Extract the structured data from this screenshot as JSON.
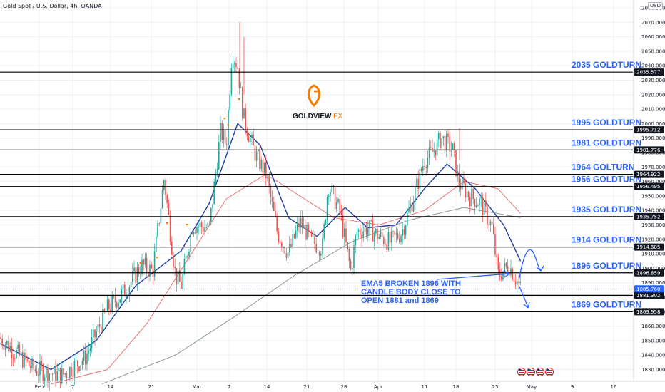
{
  "header": {
    "symbol": "Gold Spot / U.S. Dollar, 4h, OANDA",
    "currency": "USD"
  },
  "brand": {
    "name_bold": "GOLDVIEW",
    "name_light": "FX",
    "logo": "location-pin-g-logo"
  },
  "colors": {
    "up": "#26a69a",
    "down": "#ef5350",
    "ema_blue": "#1e3fa8",
    "ema_red": "#e57373",
    "ema_grey": "#8a9a8f",
    "level": "#000000",
    "label": "#2962ff",
    "brand_orange": "#f57c00"
  },
  "chart_data": {
    "type": "candlestick",
    "y_range": [
      1820,
      2080
    ],
    "y_ticks": [
      "2080.000",
      "2070.000",
      "2060.000",
      "2050.000",
      "2040.000",
      "2030.000",
      "2020.000",
      "2010.000",
      "2000.000",
      "1990.000",
      "1980.000",
      "1970.000",
      "1960.000",
      "1950.000",
      "1940.000",
      "1930.000",
      "1920.000",
      "1910.000",
      "1900.000",
      "1890.000",
      "1880.000",
      "1870.000",
      "1860.000",
      "1850.000",
      "1840.000",
      "1830.000"
    ],
    "x_labels": [
      "Feb",
      "7",
      "14",
      "21",
      "Mar",
      "7",
      "14",
      "21",
      "28",
      "Apr",
      "11",
      "18",
      "25",
      "May",
      "9",
      "16"
    ],
    "levels": [
      {
        "value": 2035.577,
        "price": "2035.577",
        "label": "2035 GOLDTURN"
      },
      {
        "value": 1995.712,
        "price": "1995.712",
        "label": "1995 GOLDTURN"
      },
      {
        "value": 1981.776,
        "price": "1981.776",
        "label": "1981 GOLDTURN"
      },
      {
        "value": 1964.922,
        "price": "1964.922",
        "label": "1964 GOLTURN"
      },
      {
        "value": 1956.495,
        "price": "1956.495",
        "label": "1956 GOLDTURN"
      },
      {
        "value": 1935.752,
        "price": "1935.752",
        "label": "1935 GOLDTURN"
      },
      {
        "value": 1914.685,
        "price": "1914.685",
        "label": "1914 GOLDTURN"
      },
      {
        "value": 1896.859,
        "price": "1896.859",
        "label": "1896 GOLDTURN"
      },
      {
        "value": 1881.302,
        "price": "1881.302",
        "label": ""
      },
      {
        "value": 1869.958,
        "price": "1869.958",
        "label": "1869 GOLDTURN"
      }
    ],
    "current_price": {
      "value": 1885.76,
      "price": "1885.760"
    },
    "annotation": [
      "EMA5 BROKEN 1896 WITH",
      "CANDLE BODY CLOSE TO",
      "OPEN 1881 and 1869"
    ],
    "price_path": [
      {
        "date": "2023-01-27",
        "close": 1852
      },
      {
        "date": "2023-02-02",
        "close": 1830
      },
      {
        "date": "2023-02-07",
        "close": 1826
      },
      {
        "date": "2023-02-11",
        "close": 1838
      },
      {
        "date": "2023-02-15",
        "close": 1872
      },
      {
        "date": "2023-02-18",
        "close": 1884
      },
      {
        "date": "2023-02-21",
        "close": 1902
      },
      {
        "date": "2023-02-23",
        "close": 1898
      },
      {
        "date": "2023-02-25",
        "close": 1962
      },
      {
        "date": "2023-02-27",
        "close": 1895
      },
      {
        "date": "2023-02-28",
        "close": 1888
      },
      {
        "date": "2023-03-02",
        "close": 1930
      },
      {
        "date": "2023-03-05",
        "close": 1928
      },
      {
        "date": "2023-03-07",
        "close": 1995
      },
      {
        "date": "2023-03-08",
        "close": 1985
      },
      {
        "date": "2023-03-09",
        "close": 2050
      },
      {
        "date": "2023-03-10",
        "close": 2040
      },
      {
        "date": "2023-03-11",
        "close": 2005
      },
      {
        "date": "2023-03-13",
        "close": 1980
      },
      {
        "date": "2023-03-15",
        "close": 1965
      },
      {
        "date": "2023-03-17",
        "close": 1925
      },
      {
        "date": "2023-03-19",
        "close": 1910
      },
      {
        "date": "2023-03-21",
        "close": 1932
      },
      {
        "date": "2023-03-23",
        "close": 1918
      },
      {
        "date": "2023-03-25",
        "close": 1915
      },
      {
        "date": "2023-03-26",
        "close": 1958
      },
      {
        "date": "2023-03-28",
        "close": 1940
      },
      {
        "date": "2023-03-30",
        "close": 1898
      },
      {
        "date": "2023-03-31",
        "close": 1925
      },
      {
        "date": "2023-04-02",
        "close": 1928
      },
      {
        "date": "2023-04-04",
        "close": 1922
      },
      {
        "date": "2023-04-06",
        "close": 1918
      },
      {
        "date": "2023-04-08",
        "close": 1925
      },
      {
        "date": "2023-04-10",
        "close": 1948
      },
      {
        "date": "2023-04-12",
        "close": 1975
      },
      {
        "date": "2023-04-13",
        "close": 1978
      },
      {
        "date": "2023-04-15",
        "close": 1990
      },
      {
        "date": "2023-04-17",
        "close": 1982
      },
      {
        "date": "2023-04-18",
        "close": 1960
      },
      {
        "date": "2023-04-20",
        "close": 1950
      },
      {
        "date": "2023-04-22",
        "close": 1945
      },
      {
        "date": "2023-04-24",
        "close": 1928
      },
      {
        "date": "2023-04-25",
        "close": 1895
      },
      {
        "date": "2023-04-27",
        "close": 1902
      },
      {
        "date": "2023-04-29",
        "close": 1886
      }
    ],
    "ema_blue": [
      {
        "date": "2023-01-27",
        "value": 1848
      },
      {
        "date": "2023-02-05",
        "value": 1830
      },
      {
        "date": "2023-02-13",
        "value": 1850
      },
      {
        "date": "2023-02-20",
        "value": 1888
      },
      {
        "date": "2023-02-28",
        "value": 1912
      },
      {
        "date": "2023-03-05",
        "value": 1945
      },
      {
        "date": "2023-03-10",
        "value": 2000
      },
      {
        "date": "2023-03-14",
        "value": 1985
      },
      {
        "date": "2023-03-19",
        "value": 1935
      },
      {
        "date": "2023-03-24",
        "value": 1922
      },
      {
        "date": "2023-03-29",
        "value": 1942
      },
      {
        "date": "2023-04-02",
        "value": 1928
      },
      {
        "date": "2023-04-07",
        "value": 1930
      },
      {
        "date": "2023-04-12",
        "value": 1955
      },
      {
        "date": "2023-04-16",
        "value": 1972
      },
      {
        "date": "2023-04-21",
        "value": 1955
      },
      {
        "date": "2023-04-26",
        "value": 1930
      },
      {
        "date": "2023-04-29",
        "value": 1905
      }
    ],
    "ema_red": [
      {
        "date": "2023-02-05",
        "value": 1820
      },
      {
        "date": "2023-02-15",
        "value": 1830
      },
      {
        "date": "2023-02-22",
        "value": 1862
      },
      {
        "date": "2023-03-01",
        "value": 1905
      },
      {
        "date": "2023-03-08",
        "value": 1948
      },
      {
        "date": "2023-03-15",
        "value": 1965
      },
      {
        "date": "2023-03-21",
        "value": 1950
      },
      {
        "date": "2023-03-27",
        "value": 1935
      },
      {
        "date": "2023-04-04",
        "value": 1930
      },
      {
        "date": "2023-04-12",
        "value": 1940
      },
      {
        "date": "2023-04-19",
        "value": 1960
      },
      {
        "date": "2023-04-25",
        "value": 1955
      },
      {
        "date": "2023-04-29",
        "value": 1938
      }
    ],
    "ema_grey": [
      {
        "date": "2023-02-14",
        "value": 1820
      },
      {
        "date": "2023-02-27",
        "value": 1840
      },
      {
        "date": "2023-03-10",
        "value": 1868
      },
      {
        "date": "2023-03-20",
        "value": 1895
      },
      {
        "date": "2023-03-30",
        "value": 1918
      },
      {
        "date": "2023-04-09",
        "value": 1933
      },
      {
        "date": "2023-04-19",
        "value": 1942
      },
      {
        "date": "2023-04-29",
        "value": 1935
      }
    ]
  }
}
